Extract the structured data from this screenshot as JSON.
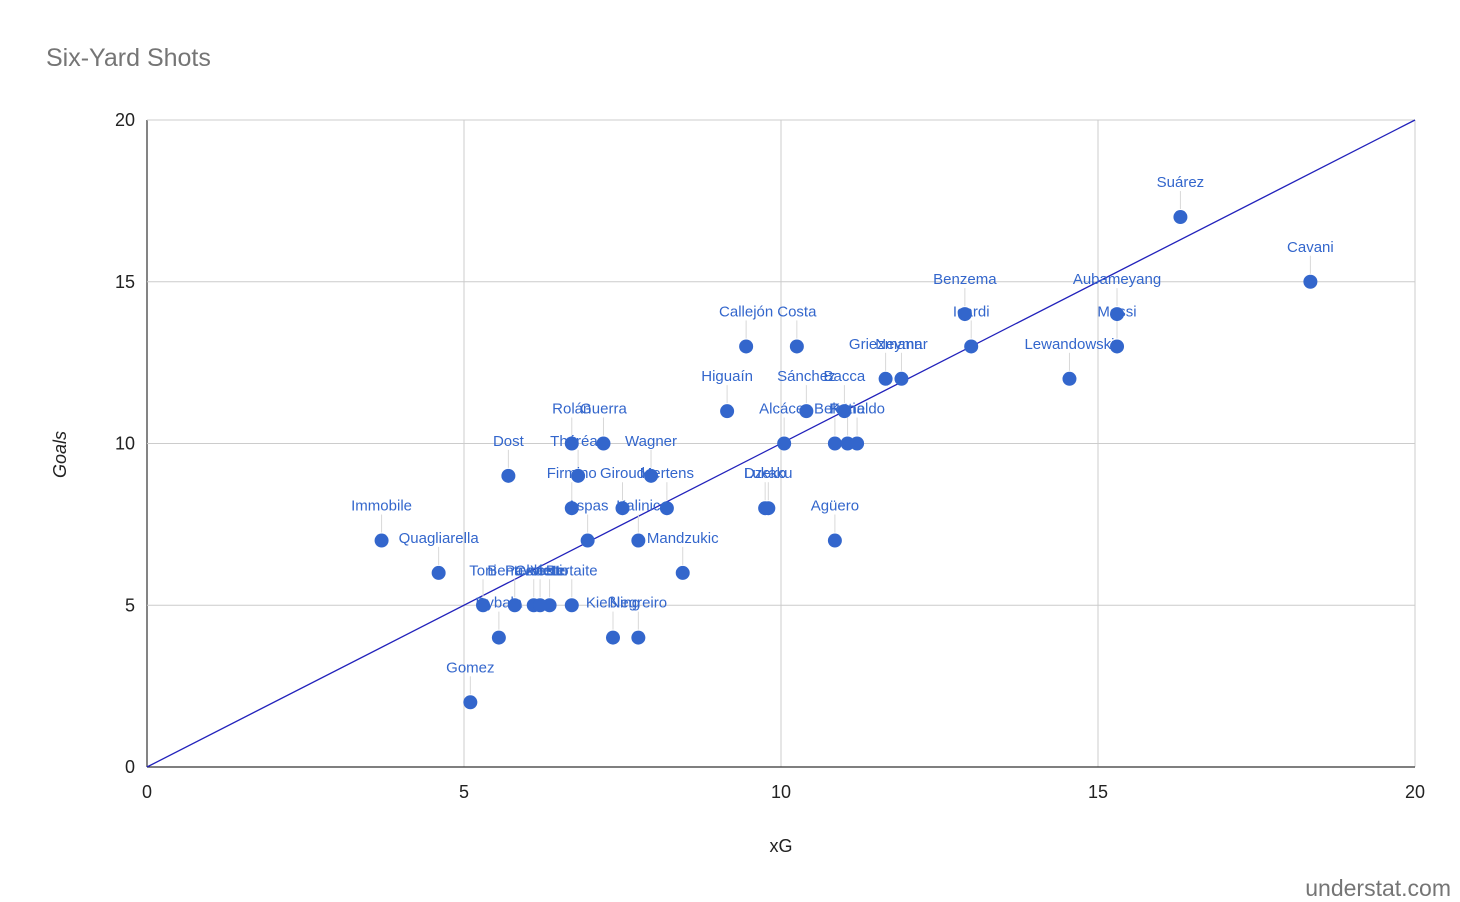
{
  "chart_data": {
    "type": "scatter",
    "title": "Six-Yard Shots",
    "xlabel": "xG",
    "ylabel": "Goals",
    "xlim": [
      0,
      20
    ],
    "ylim": [
      0,
      20
    ],
    "xticks": [
      0,
      5,
      10,
      15,
      20
    ],
    "yticks": [
      0,
      5,
      10,
      15,
      20
    ],
    "grid": true,
    "legend": "none",
    "point_color": "#3366cc",
    "reference_line": {
      "from": [
        0,
        0
      ],
      "to": [
        20,
        20
      ],
      "color": "#2222bb"
    },
    "points": [
      {
        "label": "Suárez",
        "x": 16.3,
        "y": 17
      },
      {
        "label": "Cavani",
        "x": 18.35,
        "y": 15
      },
      {
        "label": "Benzema",
        "x": 12.9,
        "y": 14
      },
      {
        "label": "Aubameyang",
        "x": 15.3,
        "y": 14
      },
      {
        "label": "Icardi",
        "x": 13.0,
        "y": 13
      },
      {
        "label": "Messi",
        "x": 15.3,
        "y": 13
      },
      {
        "label": "Lewandowski",
        "x": 14.55,
        "y": 12
      },
      {
        "label": "Callejón",
        "x": 9.45,
        "y": 13
      },
      {
        "label": "Costa",
        "x": 10.25,
        "y": 13
      },
      {
        "label": "Griezmann",
        "x": 11.65,
        "y": 12
      },
      {
        "label": "Neymar",
        "x": 11.9,
        "y": 12
      },
      {
        "label": "Higuaín",
        "x": 9.15,
        "y": 11
      },
      {
        "label": "Sánchez",
        "x": 10.4,
        "y": 11
      },
      {
        "label": "Bacca",
        "x": 11.0,
        "y": 11
      },
      {
        "label": "Belotti",
        "x": 10.85,
        "y": 10
      },
      {
        "label": "Kane",
        "x": 11.05,
        "y": 10
      },
      {
        "label": "Ronaldo",
        "x": 11.2,
        "y": 10
      },
      {
        "label": "Alcácer",
        "x": 10.05,
        "y": 10
      },
      {
        "label": "Dzeko",
        "x": 9.75,
        "y": 8
      },
      {
        "label": "Agüero",
        "x": 10.85,
        "y": 7
      },
      {
        "label": "Rolán",
        "x": 6.7,
        "y": 10
      },
      {
        "label": "Guerra",
        "x": 7.2,
        "y": 10
      },
      {
        "label": "Dost",
        "x": 5.7,
        "y": 9
      },
      {
        "label": "Théréau",
        "x": 6.8,
        "y": 9
      },
      {
        "label": "Mertens",
        "x": 8.2,
        "y": 8
      },
      {
        "label": "Aspas",
        "x": 6.95,
        "y": 7
      },
      {
        "label": "Giroud",
        "x": 7.5,
        "y": 8
      },
      {
        "label": "Wagner",
        "x": 7.95,
        "y": 9
      },
      {
        "label": "Lukaku",
        "x": 9.8,
        "y": 8
      },
      {
        "label": "Firmino",
        "x": 6.7,
        "y": 8
      },
      {
        "label": "Kalinic",
        "x": 7.75,
        "y": 7
      },
      {
        "label": "Immobile",
        "x": 3.7,
        "y": 7
      },
      {
        "label": "Quagliarella",
        "x": 4.6,
        "y": 6
      },
      {
        "label": "Benteke",
        "x": 5.8,
        "y": 5
      },
      {
        "label": "Mandzukic",
        "x": 8.45,
        "y": 6
      },
      {
        "label": "Pavoletti",
        "x": 6.1,
        "y": 5
      },
      {
        "label": "Vietto",
        "x": 6.35,
        "y": 5
      },
      {
        "label": "Celeste",
        "x": 6.2,
        "y": 5
      },
      {
        "label": "Bertaite",
        "x": 6.7,
        "y": 5
      },
      {
        "label": "Toni",
        "x": 5.3,
        "y": 5
      },
      {
        "label": "Kießling",
        "x": 7.35,
        "y": 4
      },
      {
        "label": "Negreiro",
        "x": 7.75,
        "y": 4
      },
      {
        "label": "Dybala",
        "x": 5.55,
        "y": 4
      },
      {
        "label": "Gomez",
        "x": 5.1,
        "y": 2
      }
    ],
    "watermark": "understat.com"
  }
}
